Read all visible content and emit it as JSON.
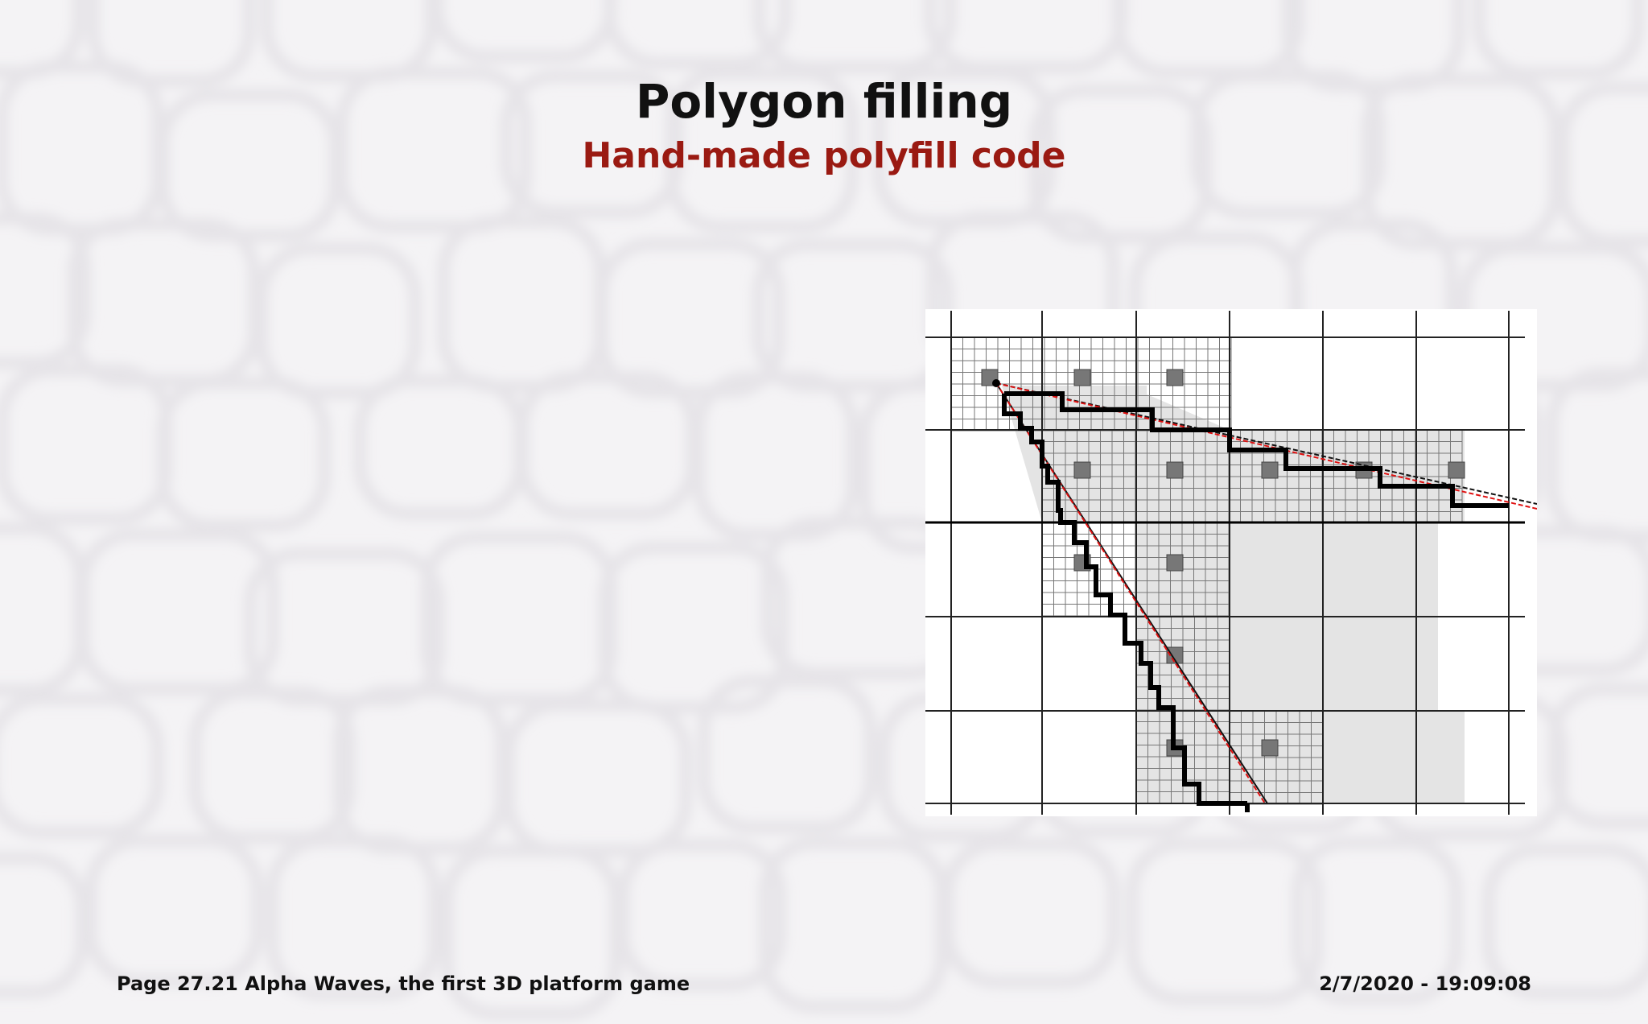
{
  "slide": {
    "title": "Polygon filling",
    "subtitle": "Hand-made polyfill code"
  },
  "footer": {
    "page_label": "Page 27.21  Alpha Waves, the first 3D platform game",
    "timestamp": "2/7/2020 - 19:09:08"
  },
  "colors": {
    "title": "#111111",
    "subtitle": "#9a1a12",
    "background": "#f4f3f5",
    "cell_outline": "#e6e4e8",
    "fill": "#e4e4e4",
    "red_edge": "#e01010"
  },
  "figure": {
    "description_icon": "polygon-raster-diagram-icon"
  }
}
